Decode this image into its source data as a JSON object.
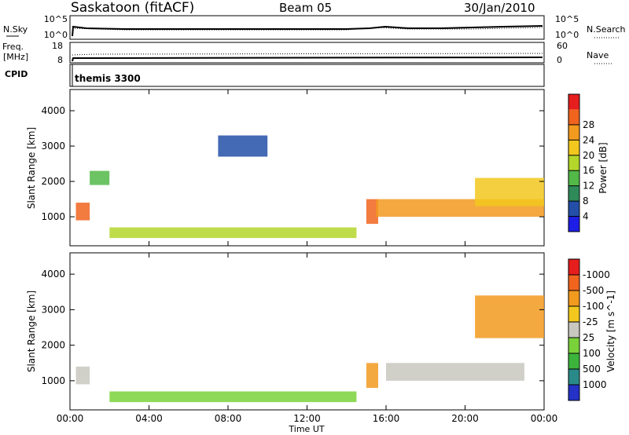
{
  "header": {
    "title": "Saskatoon (fitACF)",
    "beam": "Beam 05",
    "date": "30/Jan/2010"
  },
  "noise_panel": {
    "left_label": "N.Sky",
    "left_ticks": [
      "10^5",
      "10^0"
    ],
    "right_ticks": [
      "10^5",
      "10^0"
    ],
    "right_label": "N.Search"
  },
  "freq_panel": {
    "left_label_1": "Freq.",
    "left_label_2": "[MHz]",
    "left_ticks": [
      "18",
      "8"
    ],
    "right_ticks": [
      "60",
      "0"
    ],
    "right_label": "Nave"
  },
  "cpid_panel": {
    "label": "CPID",
    "program": "themis 3300"
  },
  "x_axis": {
    "label": "Time UT",
    "ticks": [
      "00:00",
      "04:00",
      "08:00",
      "12:00",
      "16:00",
      "20:00",
      "00:00"
    ]
  },
  "chart_data": [
    {
      "type": "heatmap",
      "title": "",
      "xlabel": "Time UT",
      "ylabel": "Slant Range [km]",
      "xlim": [
        0,
        24
      ],
      "ylim": [
        180,
        4600
      ],
      "y_ticks": [
        "1000",
        "2000",
        "3000",
        "4000"
      ],
      "colorbar": {
        "label": "Power [dB]",
        "ticks": [
          "4",
          "8",
          "12",
          "16",
          "20",
          "24",
          "28"
        ],
        "colors": [
          "#1e1ee6",
          "#234fa8",
          "#2f8a5a",
          "#52b848",
          "#b4d62a",
          "#f2c81e",
          "#f29a1e",
          "#f0641e",
          "#e61e1e"
        ]
      },
      "regions": [
        {
          "t": [
            0.3,
            1.0
          ],
          "r": [
            900,
            1400
          ],
          "level": 28
        },
        {
          "t": [
            1.0,
            2.0
          ],
          "r": [
            1900,
            2300
          ],
          "level": 12
        },
        {
          "t": [
            2.0,
            14.5
          ],
          "r": [
            400,
            700
          ],
          "level": 16
        },
        {
          "t": [
            7.5,
            10.0
          ],
          "r": [
            2700,
            3300
          ],
          "level": 6
        },
        {
          "t": [
            15.0,
            15.6
          ],
          "r": [
            800,
            1500
          ],
          "level": 28
        },
        {
          "t": [
            15.5,
            24.0
          ],
          "r": [
            1000,
            1500
          ],
          "level": 24
        },
        {
          "t": [
            20.5,
            24.0
          ],
          "r": [
            1300,
            2100
          ],
          "level": 22
        }
      ]
    },
    {
      "type": "heatmap",
      "title": "",
      "xlabel": "Time UT",
      "ylabel": "Slant Range [km]",
      "xlim": [
        0,
        24
      ],
      "ylim": [
        180,
        4600
      ],
      "y_ticks": [
        "1000",
        "2000",
        "3000",
        "4000"
      ],
      "colorbar": {
        "label": "Velocity [m s^-1]",
        "ticks": [
          "1000",
          "500",
          "100",
          "25",
          "-25",
          "-100",
          "-500",
          "-1000"
        ],
        "colors": [
          "#2432c8",
          "#2a8a8a",
          "#3cb43c",
          "#7ad23a",
          "#c8c8c0",
          "#f2c81e",
          "#f29a1e",
          "#f0641e",
          "#e61e1e"
        ]
      },
      "regions": [
        {
          "t": [
            0.3,
            1.0
          ],
          "r": [
            900,
            1400
          ],
          "level": 0
        },
        {
          "t": [
            2.0,
            14.5
          ],
          "r": [
            400,
            700
          ],
          "level": 50
        },
        {
          "t": [
            15.0,
            15.6
          ],
          "r": [
            800,
            1500
          ],
          "level": -150
        },
        {
          "t": [
            16.0,
            23.0
          ],
          "r": [
            1000,
            1500
          ],
          "level": 0
        },
        {
          "t": [
            20.5,
            24.0
          ],
          "r": [
            2200,
            3400
          ],
          "level": -200
        }
      ]
    }
  ]
}
